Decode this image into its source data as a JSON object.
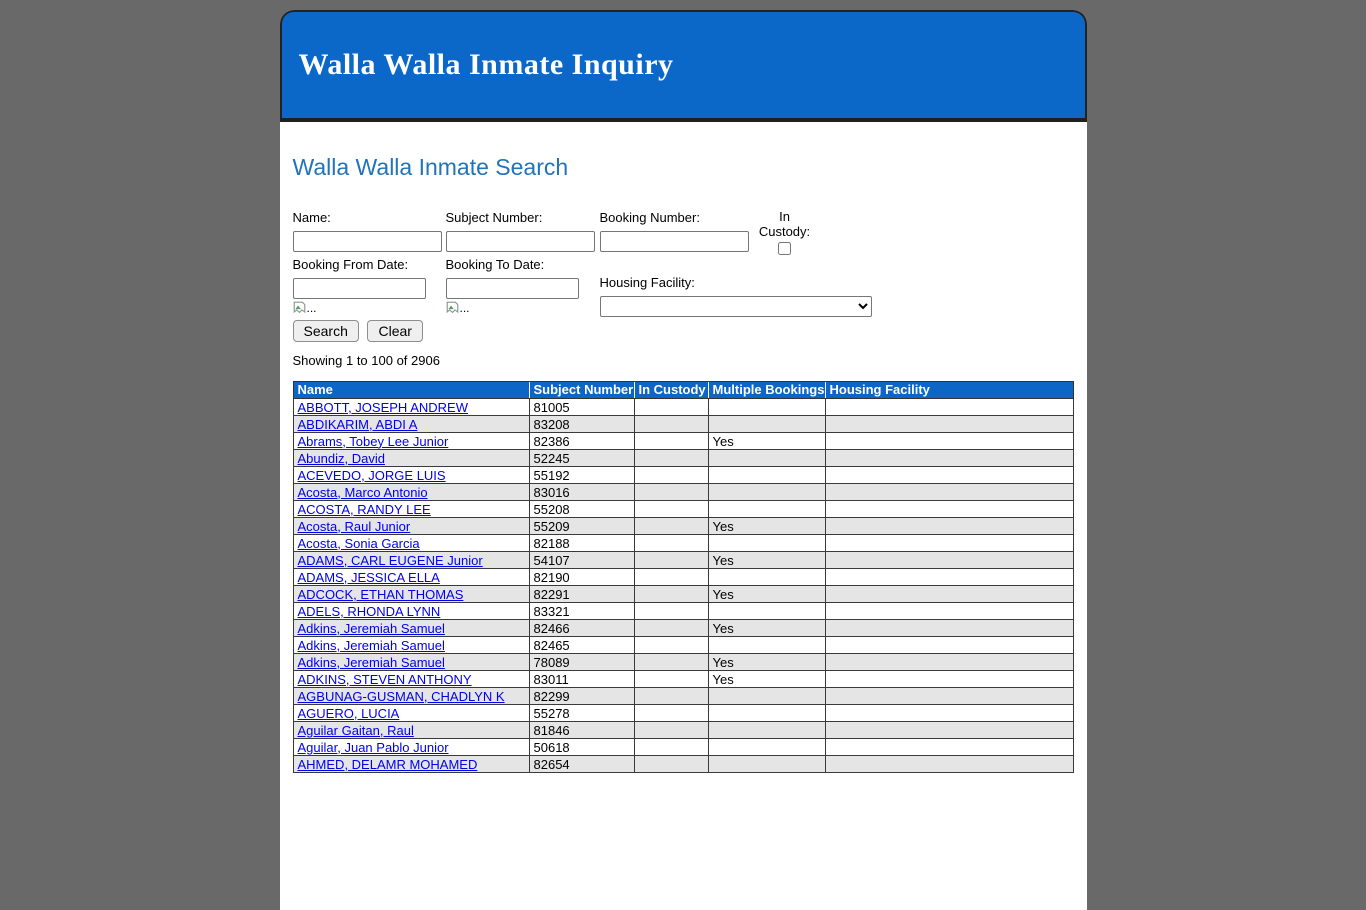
{
  "banner": {
    "title": "Walla Walla Inmate Inquiry",
    "background_color": "#0b68c8",
    "title_color": "#ffffff"
  },
  "search": {
    "heading": "Walla Walla Inmate Search",
    "heading_color": "#2273b9",
    "fields": {
      "name_label": "Name:",
      "subject_number_label": "Subject Number:",
      "booking_number_label": "Booking Number:",
      "in_custody_label": "In Custody:",
      "booking_from_label": "Booking From Date:",
      "booking_to_label": "Booking To Date:",
      "housing_facility_label": "Housing Facility:",
      "name_value": "",
      "subject_number_value": "",
      "booking_number_value": "",
      "booking_from_value": "",
      "booking_to_value": "",
      "housing_facility_selected": "",
      "in_custody_checked": false,
      "broken_image_alt": "..."
    },
    "buttons": {
      "search": "Search",
      "clear": "Clear"
    }
  },
  "results": {
    "summary": "Showing 1 to 100 of 2906",
    "table": {
      "header_background": "#0d65c6",
      "link_color": "#0000ee",
      "alt_row_color": "#e5e5e5",
      "columns": [
        "Name",
        "Subject Number",
        "In Custody",
        "Multiple Bookings",
        "Housing Facility"
      ],
      "rows": [
        {
          "name": "ABBOTT, JOSEPH ANDREW",
          "subject_number": "81005",
          "in_custody": "",
          "multiple_bookings": "",
          "housing_facility": ""
        },
        {
          "name": "ABDIKARIM, ABDI A",
          "subject_number": "83208",
          "in_custody": "",
          "multiple_bookings": "",
          "housing_facility": ""
        },
        {
          "name": "Abrams, Tobey Lee Junior",
          "subject_number": "82386",
          "in_custody": "",
          "multiple_bookings": "Yes",
          "housing_facility": ""
        },
        {
          "name": "Abundiz, David",
          "subject_number": "52245",
          "in_custody": "",
          "multiple_bookings": "",
          "housing_facility": ""
        },
        {
          "name": "ACEVEDO, JORGE LUIS",
          "subject_number": "55192",
          "in_custody": "",
          "multiple_bookings": "",
          "housing_facility": ""
        },
        {
          "name": "Acosta, Marco Antonio",
          "subject_number": "83016",
          "in_custody": "",
          "multiple_bookings": "",
          "housing_facility": ""
        },
        {
          "name": "ACOSTA, RANDY LEE",
          "subject_number": "55208",
          "in_custody": "",
          "multiple_bookings": "",
          "housing_facility": ""
        },
        {
          "name": "Acosta, Raul Junior",
          "subject_number": "55209",
          "in_custody": "",
          "multiple_bookings": "Yes",
          "housing_facility": ""
        },
        {
          "name": "Acosta, Sonia Garcia",
          "subject_number": "82188",
          "in_custody": "",
          "multiple_bookings": "",
          "housing_facility": ""
        },
        {
          "name": "ADAMS, CARL EUGENE Junior",
          "subject_number": "54107",
          "in_custody": "",
          "multiple_bookings": "Yes",
          "housing_facility": ""
        },
        {
          "name": "ADAMS, JESSICA ELLA",
          "subject_number": "82190",
          "in_custody": "",
          "multiple_bookings": "",
          "housing_facility": ""
        },
        {
          "name": "ADCOCK, ETHAN THOMAS",
          "subject_number": "82291",
          "in_custody": "",
          "multiple_bookings": "Yes",
          "housing_facility": ""
        },
        {
          "name": "ADELS, RHONDA LYNN",
          "subject_number": "83321",
          "in_custody": "",
          "multiple_bookings": "",
          "housing_facility": ""
        },
        {
          "name": "Adkins, Jeremiah Samuel",
          "subject_number": "82466",
          "in_custody": "",
          "multiple_bookings": "Yes",
          "housing_facility": ""
        },
        {
          "name": "Adkins, Jeremiah Samuel",
          "subject_number": "82465",
          "in_custody": "",
          "multiple_bookings": "",
          "housing_facility": ""
        },
        {
          "name": "Adkins, Jeremiah Samuel",
          "subject_number": "78089",
          "in_custody": "",
          "multiple_bookings": "Yes",
          "housing_facility": ""
        },
        {
          "name": "ADKINS, STEVEN ANTHONY",
          "subject_number": "83011",
          "in_custody": "",
          "multiple_bookings": "Yes",
          "housing_facility": ""
        },
        {
          "name": "AGBUNAG-GUSMAN, CHADLYN K",
          "subject_number": "82299",
          "in_custody": "",
          "multiple_bookings": "",
          "housing_facility": ""
        },
        {
          "name": "AGUERO, LUCIA",
          "subject_number": "55278",
          "in_custody": "",
          "multiple_bookings": "",
          "housing_facility": ""
        },
        {
          "name": "Aguilar Gaitan, Raul",
          "subject_number": "81846",
          "in_custody": "",
          "multiple_bookings": "",
          "housing_facility": ""
        },
        {
          "name": "Aguilar, Juan Pablo Junior",
          "subject_number": "50618",
          "in_custody": "",
          "multiple_bookings": "",
          "housing_facility": ""
        },
        {
          "name": "AHMED, DELAMR MOHAMED",
          "subject_number": "82654",
          "in_custody": "",
          "multiple_bookings": "",
          "housing_facility": ""
        }
      ]
    }
  }
}
